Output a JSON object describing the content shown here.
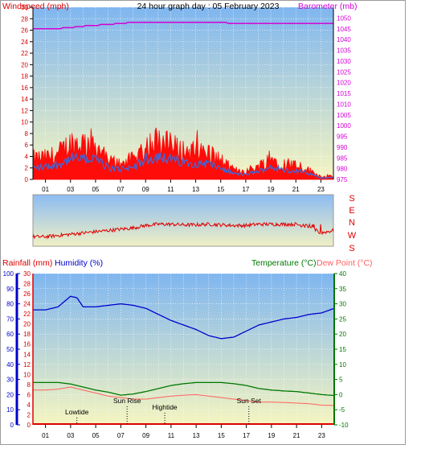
{
  "header": {
    "left_label": "Windspeed (mph)",
    "title": "24 hour graph day : 05 February 2023",
    "right_label": "Barometer (mb)"
  },
  "lower_header": {
    "rain_label": "Rainfall (mm)",
    "humidity_label": "Humidity (%)",
    "temp_label": "Temperature (°C)",
    "dew_label": "Dew Point (°C)"
  },
  "compass": [
    "S",
    "E",
    "N",
    "W",
    "S"
  ],
  "colors": {
    "wind_gust": "#ff0000",
    "wind_avg": "#1e78ff",
    "barometer": "#d400d4",
    "direction": "#e00000",
    "humidity": "#0000cc",
    "temperature": "#007700",
    "dewpoint": "#ff6060",
    "rain_axis": "#dd0000",
    "sky_top": "#7fb6f0",
    "sky_bottom": "#f5f5c0"
  },
  "events": [
    {
      "label": "Lowtide",
      "hour": 3.5
    },
    {
      "label": "Sun Rise",
      "hour": 7.5
    },
    {
      "label": "Hightide",
      "hour": 10.5
    },
    {
      "label": "Sun Set",
      "hour": 17.2
    }
  ],
  "chart_data": [
    {
      "type": "line",
      "title": "24 hour graph day : 05 February 2023",
      "xticks": [
        "01",
        "03",
        "05",
        "07",
        "09",
        "11",
        "13",
        "15",
        "17",
        "19",
        "21",
        "23"
      ],
      "left_axis": {
        "label": "Windspeed (mph)",
        "ylim": [
          0,
          30
        ],
        "ticks": [
          0,
          2,
          4,
          6,
          8,
          10,
          12,
          14,
          16,
          18,
          20,
          22,
          24,
          26,
          28,
          30
        ]
      },
      "right_axis": {
        "label": "Barometer (mb)",
        "ylim": [
          975,
          1055
        ],
        "ticks": [
          975,
          980,
          985,
          990,
          995,
          1000,
          1005,
          1010,
          1015,
          1020,
          1025,
          1030,
          1035,
          1040,
          1045,
          1050
        ]
      },
      "series": [
        {
          "name": "Windspeed gust",
          "axis": "left",
          "x": [
            0,
            1,
            2,
            3,
            4,
            5,
            6,
            7,
            8,
            9,
            10,
            11,
            12,
            13,
            14,
            15,
            16,
            17,
            18,
            19,
            20,
            21,
            22,
            23,
            24
          ],
          "values": [
            3.5,
            3.6,
            4.2,
            6,
            6,
            6,
            3,
            2.8,
            3.3,
            5.5,
            6.5,
            5.5,
            4.8,
            4.6,
            4.5,
            3.2,
            1.6,
            1.4,
            2.2,
            3.5,
            2.6,
            2.6,
            1.6,
            0.5,
            0.5
          ]
        },
        {
          "name": "Windspeed average",
          "axis": "left",
          "x": [
            0,
            1,
            2,
            3,
            4,
            5,
            6,
            7,
            8,
            9,
            10,
            11,
            12,
            13,
            14,
            15,
            16,
            17,
            18,
            19,
            20,
            21,
            22,
            23,
            24
          ],
          "values": [
            2,
            2.2,
            2.6,
            3.6,
            3.6,
            3.6,
            2,
            1.8,
            2.1,
            3.5,
            4.1,
            3.5,
            3,
            2.9,
            2.8,
            2,
            1,
            0.9,
            1.4,
            2.2,
            1.6,
            1.6,
            1,
            0.3,
            0.3
          ]
        },
        {
          "name": "Barometer",
          "axis": "right",
          "x": [
            0,
            1.5,
            3,
            4.5,
            6,
            7,
            8,
            9,
            10,
            11,
            12,
            13,
            14,
            15,
            16,
            17,
            18,
            19,
            20,
            21,
            22,
            23,
            24
          ],
          "values": [
            1045,
            1045,
            1045.5,
            1046.5,
            1047,
            1047.5,
            1048,
            1048,
            1048,
            1048,
            1048,
            1048,
            1048,
            1047.8,
            1047.7,
            1047.6,
            1047.5,
            1047.5,
            1047.5,
            1047.5,
            1047.3,
            1047.3,
            1047.3
          ]
        }
      ]
    },
    {
      "type": "line",
      "title": "",
      "ylim": [
        0,
        360
      ],
      "ylabels": [
        "S",
        "E",
        "N",
        "W",
        "S"
      ],
      "series": [
        {
          "name": "Wind direction",
          "x": [
            0,
            1,
            2,
            3,
            4,
            5,
            6,
            7,
            8,
            9,
            10,
            11,
            12,
            13,
            14,
            15,
            16,
            17,
            18,
            19,
            20,
            21,
            22,
            23,
            24
          ],
          "values": [
            50,
            50,
            60,
            70,
            80,
            90,
            100,
            110,
            120,
            140,
            150,
            150,
            145,
            145,
            150,
            145,
            140,
            140,
            150,
            150,
            150,
            150,
            130,
            80,
            100
          ]
        }
      ]
    },
    {
      "type": "line",
      "title": "",
      "xticks": [
        "01",
        "03",
        "05",
        "07",
        "09",
        "11",
        "13",
        "15",
        "17",
        "19",
        "21",
        "23"
      ],
      "rain_axis": {
        "label": "Rainfall (mm)",
        "ylim": [
          0,
          30
        ],
        "ticks": [
          0,
          2,
          4,
          6,
          8,
          10,
          12,
          14,
          16,
          18,
          20,
          22,
          24,
          26,
          28,
          30
        ]
      },
      "humidity_axis": {
        "label": "Humidity (%)",
        "ylim": [
          0,
          100
        ],
        "ticks": [
          0,
          10,
          20,
          30,
          40,
          50,
          60,
          70,
          80,
          90,
          100
        ]
      },
      "temp_axis": {
        "label": "Temperature (°C)",
        "ylim": [
          -10,
          40
        ],
        "ticks": [
          -10,
          -5,
          0,
          5,
          10,
          15,
          20,
          25,
          30,
          35,
          40
        ]
      },
      "series": [
        {
          "name": "Humidity",
          "axis": "humidity",
          "x": [
            0,
            1,
            2,
            3,
            3.5,
            4,
            5,
            6,
            7,
            8,
            9,
            10,
            11,
            12,
            13,
            14,
            15,
            16,
            17,
            18,
            19,
            20,
            21,
            22,
            23,
            24
          ],
          "values": [
            76,
            76,
            78,
            85,
            84,
            78,
            78,
            79,
            80,
            79,
            77,
            73,
            69,
            66,
            63,
            59,
            57,
            58,
            62,
            66,
            68,
            70,
            71,
            73,
            74,
            77
          ]
        },
        {
          "name": "Temperature",
          "axis": "temp",
          "x": [
            0,
            1,
            2,
            3,
            4,
            5,
            6,
            7,
            8,
            9,
            10,
            11,
            12,
            13,
            14,
            15,
            16,
            17,
            18,
            19,
            20,
            21,
            22,
            23,
            24
          ],
          "values": [
            4,
            4,
            4,
            3.5,
            2.5,
            1.5,
            0.8,
            -0.2,
            0.2,
            1,
            2,
            3,
            3.6,
            4,
            4,
            4,
            3.6,
            3,
            2,
            1.5,
            1.2,
            1,
            0.5,
            0,
            -0.3
          ]
        },
        {
          "name": "Dew Point",
          "axis": "temp",
          "x": [
            0,
            1,
            2,
            3,
            4,
            5,
            6,
            7,
            8,
            9,
            10,
            11,
            12,
            13,
            14,
            15,
            16,
            17,
            18,
            19,
            20,
            21,
            22,
            23,
            24
          ],
          "values": [
            1.5,
            1.5,
            1.8,
            2.5,
            1.5,
            0.5,
            -0.5,
            -1,
            -1.5,
            -1.5,
            -1,
            -0.5,
            -0.2,
            0,
            -0.5,
            -1,
            -1.5,
            -2,
            -2.5,
            -2.5,
            -2.6,
            -2.8,
            -3,
            -3.5,
            -3.6
          ]
        },
        {
          "name": "Rainfall",
          "axis": "rain",
          "x": [
            0,
            24
          ],
          "values": [
            0,
            0
          ]
        }
      ]
    }
  ]
}
